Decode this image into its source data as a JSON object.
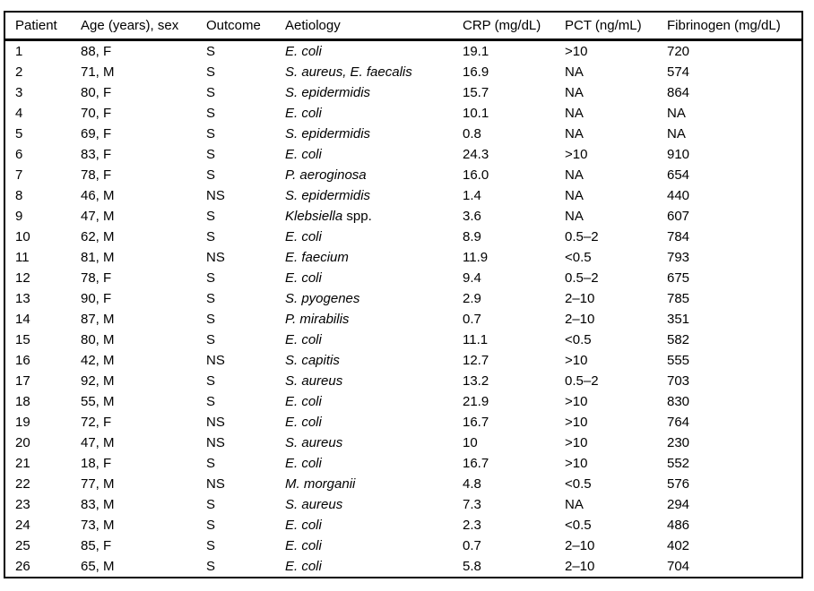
{
  "table": {
    "columns": [
      {
        "key": "patient",
        "label": "Patient"
      },
      {
        "key": "age_sex",
        "label": "Age (years), sex"
      },
      {
        "key": "outcome",
        "label": "Outcome"
      },
      {
        "key": "aetiology",
        "label": "Aetiology"
      },
      {
        "key": "crp",
        "label": "CRP (mg/dL)"
      },
      {
        "key": "pct",
        "label": "PCT (ng/mL)"
      },
      {
        "key": "fibrinogen",
        "label": "Fibrinogen (mg/dL)"
      }
    ],
    "rows": [
      {
        "patient": "1",
        "age_sex": "88, F",
        "outcome": "S",
        "aetiology_italic": "E. coli",
        "aetiology_roman": "",
        "crp": "19.1",
        "pct": ">10",
        "fibrinogen": "720"
      },
      {
        "patient": "2",
        "age_sex": "71, M",
        "outcome": "S",
        "aetiology_italic": "S. aureus, E. faecalis",
        "aetiology_roman": "",
        "crp": "16.9",
        "pct": "NA",
        "fibrinogen": "574"
      },
      {
        "patient": "3",
        "age_sex": "80, F",
        "outcome": "S",
        "aetiology_italic": "S. epidermidis",
        "aetiology_roman": "",
        "crp": "15.7",
        "pct": "NA",
        "fibrinogen": "864"
      },
      {
        "patient": "4",
        "age_sex": "70, F",
        "outcome": "S",
        "aetiology_italic": "E. coli",
        "aetiology_roman": "",
        "crp": "10.1",
        "pct": "NA",
        "fibrinogen": "NA"
      },
      {
        "patient": "5",
        "age_sex": "69, F",
        "outcome": "S",
        "aetiology_italic": "S. epidermidis",
        "aetiology_roman": "",
        "crp": "0.8",
        "pct": "NA",
        "fibrinogen": "NA"
      },
      {
        "patient": "6",
        "age_sex": "83, F",
        "outcome": "S",
        "aetiology_italic": "E. coli",
        "aetiology_roman": "",
        "crp": "24.3",
        "pct": ">10",
        "fibrinogen": "910"
      },
      {
        "patient": "7",
        "age_sex": "78, F",
        "outcome": "S",
        "aetiology_italic": "P. aeroginosa",
        "aetiology_roman": "",
        "crp": "16.0",
        "pct": "NA",
        "fibrinogen": "654"
      },
      {
        "patient": "8",
        "age_sex": "46, M",
        "outcome": "NS",
        "aetiology_italic": "S. epidermidis",
        "aetiology_roman": "",
        "crp": "1.4",
        "pct": "NA",
        "fibrinogen": "440"
      },
      {
        "patient": "9",
        "age_sex": "47, M",
        "outcome": "S",
        "aetiology_italic": "Klebsiella",
        "aetiology_roman": " spp.",
        "crp": "3.6",
        "pct": "NA",
        "fibrinogen": "607"
      },
      {
        "patient": "10",
        "age_sex": "62, M",
        "outcome": "S",
        "aetiology_italic": "E. coli",
        "aetiology_roman": "",
        "crp": "8.9",
        "pct": "0.5–2",
        "fibrinogen": "784"
      },
      {
        "patient": "11",
        "age_sex": "81, M",
        "outcome": "NS",
        "aetiology_italic": "E. faecium",
        "aetiology_roman": "",
        "crp": "11.9",
        "pct": "<0.5",
        "fibrinogen": "793"
      },
      {
        "patient": "12",
        "age_sex": "78, F",
        "outcome": "S",
        "aetiology_italic": "E. coli",
        "aetiology_roman": "",
        "crp": "9.4",
        "pct": "0.5–2",
        "fibrinogen": "675"
      },
      {
        "patient": "13",
        "age_sex": "90, F",
        "outcome": "S",
        "aetiology_italic": "S. pyogenes",
        "aetiology_roman": "",
        "crp": "2.9",
        "pct": "2–10",
        "fibrinogen": "785"
      },
      {
        "patient": "14",
        "age_sex": "87, M",
        "outcome": "S",
        "aetiology_italic": "P. mirabilis",
        "aetiology_roman": "",
        "crp": "0.7",
        "pct": "2–10",
        "fibrinogen": "351"
      },
      {
        "patient": "15",
        "age_sex": "80, M",
        "outcome": "S",
        "aetiology_italic": "E. coli",
        "aetiology_roman": "",
        "crp": "11.1",
        "pct": "<0.5",
        "fibrinogen": "582"
      },
      {
        "patient": "16",
        "age_sex": "42, M",
        "outcome": "NS",
        "aetiology_italic": "S. capitis",
        "aetiology_roman": "",
        "crp": "12.7",
        "pct": ">10",
        "fibrinogen": "555"
      },
      {
        "patient": "17",
        "age_sex": "92, M",
        "outcome": "S",
        "aetiology_italic": "S. aureus",
        "aetiology_roman": "",
        "crp": "13.2",
        "pct": "0.5–2",
        "fibrinogen": "703"
      },
      {
        "patient": "18",
        "age_sex": "55, M",
        "outcome": "S",
        "aetiology_italic": "E. coli",
        "aetiology_roman": "",
        "crp": "21.9",
        "pct": ">10",
        "fibrinogen": "830"
      },
      {
        "patient": "19",
        "age_sex": "72, F",
        "outcome": "NS",
        "aetiology_italic": "E. coli",
        "aetiology_roman": "",
        "crp": "16.7",
        "pct": ">10",
        "fibrinogen": "764"
      },
      {
        "patient": "20",
        "age_sex": "47, M",
        "outcome": "NS",
        "aetiology_italic": "S. aureus",
        "aetiology_roman": "",
        "crp": "10",
        "pct": ">10",
        "fibrinogen": "230"
      },
      {
        "patient": "21",
        "age_sex": "18, F",
        "outcome": "S",
        "aetiology_italic": "E. coli",
        "aetiology_roman": "",
        "crp": "16.7",
        "pct": ">10",
        "fibrinogen": "552"
      },
      {
        "patient": "22",
        "age_sex": "77, M",
        "outcome": "NS",
        "aetiology_italic": "M. morganii",
        "aetiology_roman": "",
        "crp": "4.8",
        "pct": "<0.5",
        "fibrinogen": "576"
      },
      {
        "patient": "23",
        "age_sex": "83, M",
        "outcome": "S",
        "aetiology_italic": "S. aureus",
        "aetiology_roman": "",
        "crp": "7.3",
        "pct": "NA",
        "fibrinogen": "294"
      },
      {
        "patient": "24",
        "age_sex": "73, M",
        "outcome": "S",
        "aetiology_italic": "E. coli",
        "aetiology_roman": "",
        "crp": "2.3",
        "pct": "<0.5",
        "fibrinogen": "486"
      },
      {
        "patient": "25",
        "age_sex": "85, F",
        "outcome": "S",
        "aetiology_italic": "E. coli",
        "aetiology_roman": "",
        "crp": "0.7",
        "pct": "2–10",
        "fibrinogen": "402"
      },
      {
        "patient": "26",
        "age_sex": "65, M",
        "outcome": "S",
        "aetiology_italic": "E. coli",
        "aetiology_roman": "",
        "crp": "5.8",
        "pct": "2–10",
        "fibrinogen": "704"
      }
    ],
    "text_color": "#000000",
    "border_color": "#000000",
    "background_color": "#ffffff"
  }
}
